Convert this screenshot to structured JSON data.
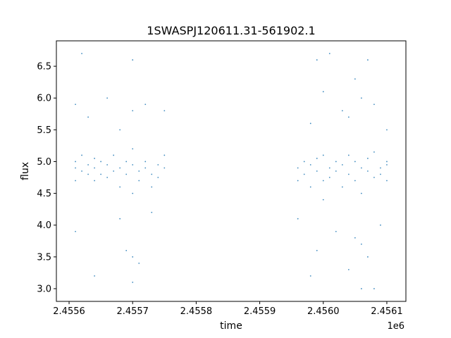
{
  "chart_data": {
    "type": "scatter",
    "title": "1SWASPJ120611.31-561902.1",
    "xlabel": "time",
    "ylabel": "flux",
    "x_offset_label": "1e6",
    "xlim": [
      2.45558,
      2.45613
    ],
    "ylim": [
      2.8,
      6.9
    ],
    "x_ticks": [
      {
        "value": 2.4556,
        "label": "2.4556"
      },
      {
        "value": 2.4557,
        "label": "2.4557"
      },
      {
        "value": 2.4558,
        "label": "2.4558"
      },
      {
        "value": 2.4559,
        "label": "2.4559"
      },
      {
        "value": 2.456,
        "label": "2.4560"
      },
      {
        "value": 2.4561,
        "label": "2.4561"
      }
    ],
    "y_ticks": [
      {
        "value": 3.0,
        "label": "3.0"
      },
      {
        "value": 3.5,
        "label": "3.5"
      },
      {
        "value": 4.0,
        "label": "4.0"
      },
      {
        "value": 4.5,
        "label": "4.5"
      },
      {
        "value": 5.0,
        "label": "5.0"
      },
      {
        "value": 5.5,
        "label": "5.5"
      },
      {
        "value": 6.0,
        "label": "6.0"
      },
      {
        "value": 6.5,
        "label": "6.5"
      }
    ],
    "grid": false,
    "marker_color": "#1f77b4",
    "series": [
      {
        "x": [
          2.45561,
          2.45561,
          2.45561,
          2.45562,
          2.45562,
          2.45563,
          2.45563,
          2.45564,
          2.45564,
          2.45564,
          2.45565,
          2.45565,
          2.45566,
          2.45566,
          2.45567,
          2.45567,
          2.45568,
          2.45568,
          2.45569,
          2.45569,
          2.4557,
          2.4557,
          2.4557,
          2.45571,
          2.45571,
          2.45572,
          2.45572,
          2.45573,
          2.45573,
          2.45574,
          2.45574,
          2.45575,
          2.45575,
          2.45561,
          2.45563,
          2.45566,
          2.45568,
          2.4557,
          2.4557,
          2.45571,
          2.45573,
          2.45575,
          2.45561,
          2.45568,
          2.4557,
          2.4557,
          2.45562,
          2.45569,
          2.45564,
          2.45572,
          2.45596,
          2.45596,
          2.45597,
          2.45597,
          2.45598,
          2.45598,
          2.45599,
          2.45599,
          2.456,
          2.456,
          2.456,
          2.45601,
          2.45601,
          2.45602,
          2.45602,
          2.45603,
          2.45603,
          2.45604,
          2.45604,
          2.45605,
          2.45605,
          2.45606,
          2.45606,
          2.45607,
          2.45607,
          2.45608,
          2.45608,
          2.45609,
          2.45609,
          2.4561,
          2.4561,
          2.4561,
          2.45596,
          2.45598,
          2.45599,
          2.456,
          2.45602,
          2.45604,
          2.45605,
          2.45606,
          2.45607,
          2.45608,
          2.45609,
          2.4561,
          2.45599,
          2.45601,
          2.45604,
          2.45605,
          2.45606,
          2.45607,
          2.45603,
          2.45606,
          2.45598,
          2.45608
        ],
        "y": [
          4.9,
          5.0,
          4.7,
          4.85,
          5.1,
          4.8,
          4.95,
          5.05,
          4.7,
          4.9,
          4.8,
          5.0,
          4.75,
          4.95,
          4.85,
          5.1,
          4.9,
          4.6,
          5.0,
          4.8,
          4.95,
          4.5,
          5.2,
          4.85,
          4.7,
          5.0,
          4.9,
          4.8,
          4.6,
          4.95,
          4.75,
          4.9,
          5.1,
          5.9,
          5.7,
          6.0,
          4.1,
          5.8,
          3.5,
          3.4,
          4.2,
          5.8,
          3.9,
          5.5,
          6.6,
          3.1,
          6.7,
          3.6,
          3.2,
          5.9,
          4.9,
          4.7,
          5.0,
          4.8,
          4.95,
          4.6,
          5.05,
          4.85,
          4.7,
          5.1,
          4.4,
          4.9,
          4.75,
          5.0,
          4.85,
          4.95,
          4.6,
          5.1,
          4.8,
          4.7,
          5.0,
          4.9,
          4.5,
          5.05,
          4.85,
          4.75,
          5.15,
          4.9,
          4.8,
          5.0,
          4.7,
          4.95,
          4.1,
          5.6,
          3.6,
          6.1,
          3.9,
          5.7,
          3.8,
          6.0,
          3.5,
          5.9,
          4.0,
          5.5,
          6.6,
          6.7,
          3.3,
          6.3,
          3.0,
          6.6,
          5.8,
          3.7,
          3.2,
          3.0
        ]
      }
    ]
  }
}
